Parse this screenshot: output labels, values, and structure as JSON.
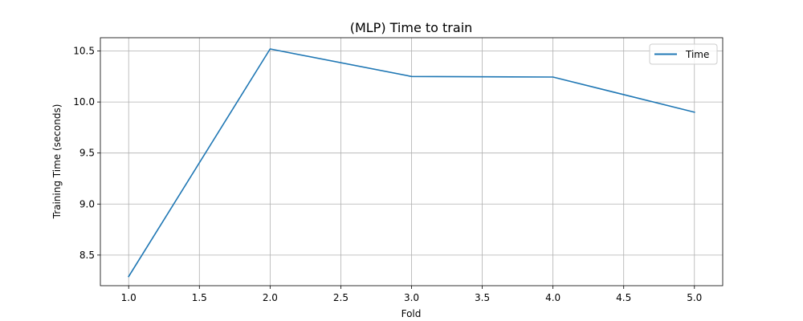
{
  "chart_data": {
    "type": "line",
    "title": "(MLP) Time to train",
    "xlabel": "Fold",
    "ylabel": "Training Time (seconds)",
    "x": [
      1,
      2,
      3,
      4,
      5
    ],
    "series": [
      {
        "name": "Time",
        "values": [
          8.29,
          10.52,
          10.25,
          10.245,
          9.9
        ],
        "color": "#1f77b4"
      }
    ],
    "xlim": [
      0.8,
      5.2
    ],
    "ylim": [
      8.2,
      10.63
    ],
    "x_ticks": [
      1.0,
      1.5,
      2.0,
      2.5,
      3.0,
      3.5,
      4.0,
      4.5,
      5.0
    ],
    "x_tick_labels": [
      "1.0",
      "1.5",
      "2.0",
      "2.5",
      "3.0",
      "3.5",
      "4.0",
      "4.5",
      "5.0"
    ],
    "y_ticks": [
      8.5,
      9.0,
      9.5,
      10.0,
      10.5
    ],
    "y_tick_labels": [
      "8.5",
      "9.0",
      "9.5",
      "10.0",
      "10.5"
    ],
    "grid": true,
    "legend": "top-right"
  }
}
